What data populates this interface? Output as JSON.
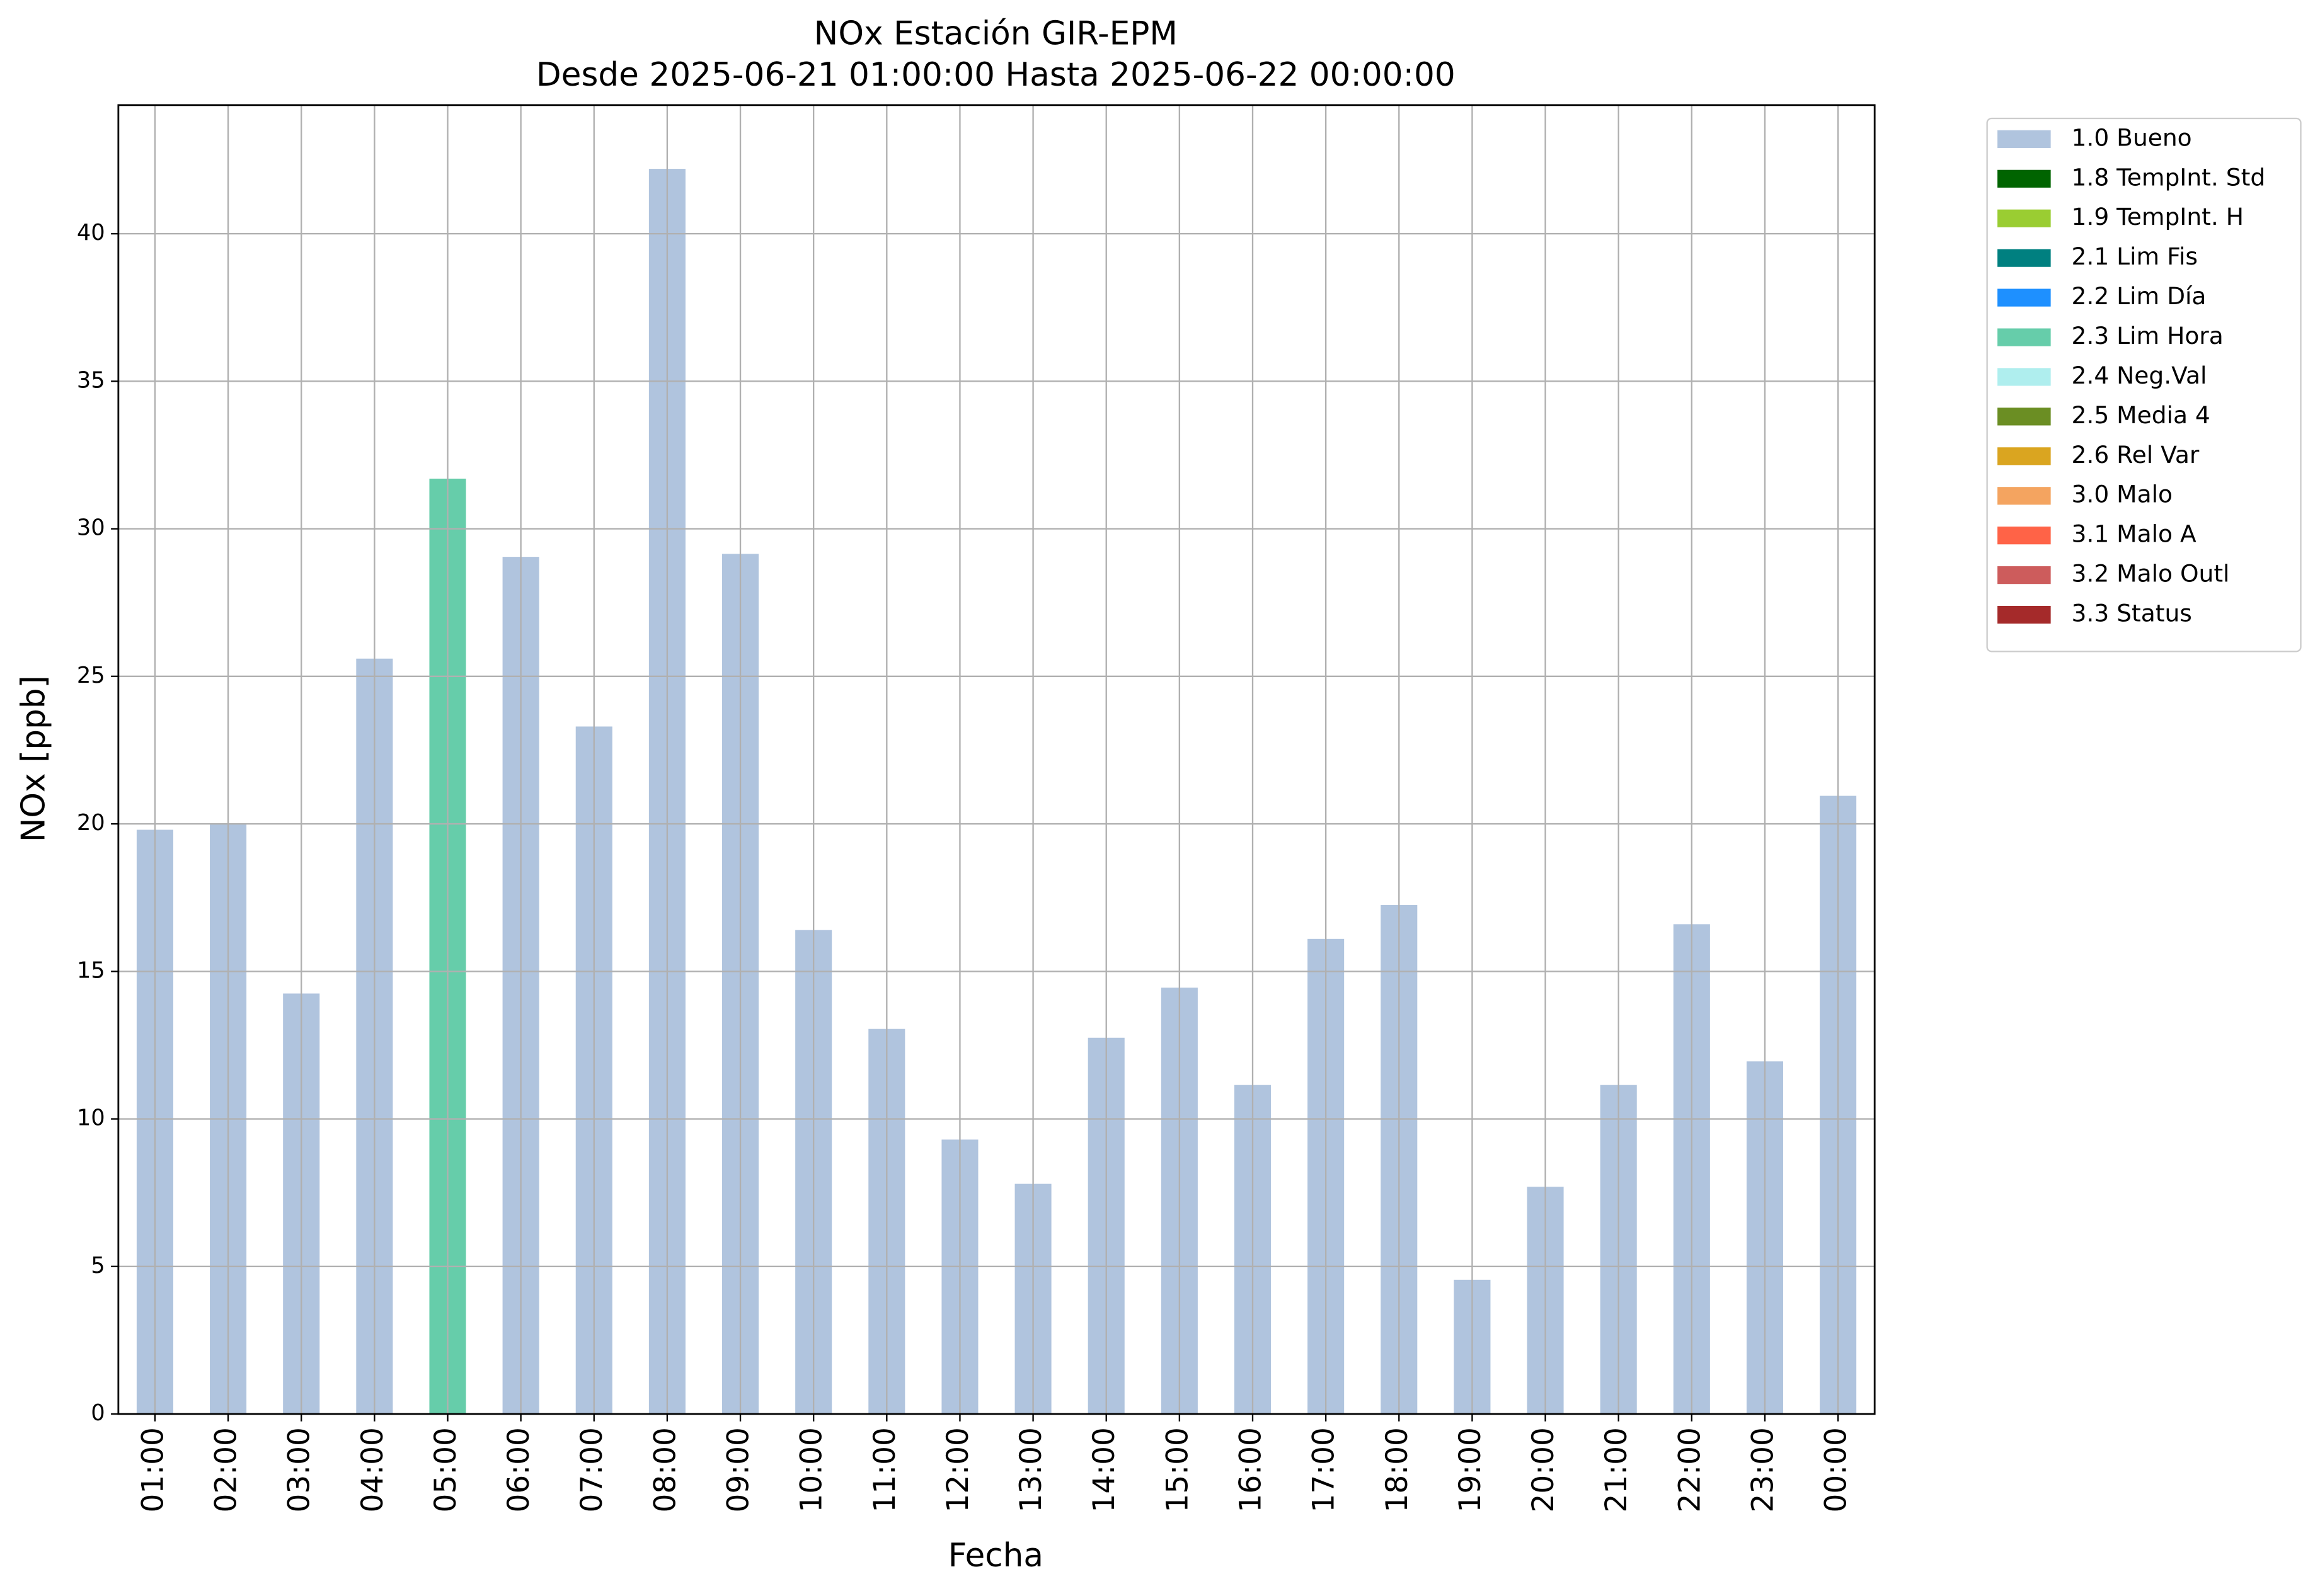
{
  "chart_data": {
    "type": "bar",
    "title": "NOx Estación GIR-EPM",
    "subtitle": "Desde 2025-06-21 01:00:00 Hasta 2025-06-22 00:00:00",
    "x_label": "Fecha",
    "y_label": "NOx [ppb]",
    "categories": [
      "01:00",
      "02:00",
      "03:00",
      "04:00",
      "05:00",
      "06:00",
      "07:00",
      "08:00",
      "09:00",
      "10:00",
      "11:00",
      "12:00",
      "13:00",
      "14:00",
      "15:00",
      "16:00",
      "17:00",
      "18:00",
      "19:00",
      "20:00",
      "21:00",
      "22:00",
      "23:00",
      "00:00"
    ],
    "ylim": [
      0,
      44.36
    ],
    "yticks": [
      0,
      5,
      10,
      15,
      20,
      25,
      30,
      35,
      40
    ],
    "grid": true,
    "stacked": true,
    "legend": "outside-upper-right",
    "series": [
      {
        "name": "1.0 Bueno",
        "color": "#b0c4de",
        "values": [
          19.8,
          20.0,
          14.25,
          25.6,
          null,
          29.05,
          23.3,
          42.2,
          29.15,
          16.4,
          13.05,
          9.3,
          7.8,
          12.75,
          14.45,
          11.15,
          16.1,
          17.25,
          4.55,
          7.7,
          11.15,
          16.6,
          11.95,
          20.95
        ]
      },
      {
        "name": "1.8 TempInt. Std",
        "color": "#006400",
        "values": [
          null,
          null,
          null,
          null,
          null,
          null,
          null,
          null,
          null,
          null,
          null,
          null,
          null,
          null,
          null,
          null,
          null,
          null,
          null,
          null,
          null,
          null,
          null,
          null
        ]
      },
      {
        "name": "1.9 TempInt. H",
        "color": "#9acd32",
        "values": [
          null,
          null,
          null,
          null,
          null,
          null,
          null,
          null,
          null,
          null,
          null,
          null,
          null,
          null,
          null,
          null,
          null,
          null,
          null,
          null,
          null,
          null,
          null,
          null
        ]
      },
      {
        "name": "2.1 Lim Fis",
        "color": "#008080",
        "values": [
          null,
          null,
          null,
          null,
          null,
          null,
          null,
          null,
          null,
          null,
          null,
          null,
          null,
          null,
          null,
          null,
          null,
          null,
          null,
          null,
          null,
          null,
          null,
          null
        ]
      },
      {
        "name": "2.2 Lim Día",
        "color": "#1e90ff",
        "values": [
          null,
          null,
          null,
          null,
          null,
          null,
          null,
          null,
          null,
          null,
          null,
          null,
          null,
          null,
          null,
          null,
          null,
          null,
          null,
          null,
          null,
          null,
          null,
          null
        ]
      },
      {
        "name": "2.3 Lim Hora",
        "color": "#66cdaa",
        "values": [
          null,
          null,
          null,
          null,
          31.7,
          null,
          null,
          null,
          null,
          null,
          null,
          null,
          null,
          null,
          null,
          null,
          null,
          null,
          null,
          null,
          null,
          null,
          null,
          null
        ]
      },
      {
        "name": "2.4 Neg.Val",
        "color": "#afeeee",
        "values": [
          null,
          null,
          null,
          null,
          null,
          null,
          null,
          null,
          null,
          null,
          null,
          null,
          null,
          null,
          null,
          null,
          null,
          null,
          null,
          null,
          null,
          null,
          null,
          null
        ]
      },
      {
        "name": "2.5 Media 4",
        "color": "#6b8e23",
        "values": [
          null,
          null,
          null,
          null,
          null,
          null,
          null,
          null,
          null,
          null,
          null,
          null,
          null,
          null,
          null,
          null,
          null,
          null,
          null,
          null,
          null,
          null,
          null,
          null
        ]
      },
      {
        "name": "2.6 Rel Var",
        "color": "#daa520",
        "values": [
          null,
          null,
          null,
          null,
          null,
          null,
          null,
          null,
          null,
          null,
          null,
          null,
          null,
          null,
          null,
          null,
          null,
          null,
          null,
          null,
          null,
          null,
          null,
          null
        ]
      },
      {
        "name": "3.0 Malo",
        "color": "#f4a460",
        "values": [
          null,
          null,
          null,
          null,
          null,
          null,
          null,
          null,
          null,
          null,
          null,
          null,
          null,
          null,
          null,
          null,
          null,
          null,
          null,
          null,
          null,
          null,
          null,
          null
        ]
      },
      {
        "name": "3.1 Malo A",
        "color": "#ff6347",
        "values": [
          null,
          null,
          null,
          null,
          null,
          null,
          null,
          null,
          null,
          null,
          null,
          null,
          null,
          null,
          null,
          null,
          null,
          null,
          null,
          null,
          null,
          null,
          null,
          null
        ]
      },
      {
        "name": "3.2 Malo Outl",
        "color": "#cd5c5c",
        "values": [
          null,
          null,
          null,
          null,
          null,
          null,
          null,
          null,
          null,
          null,
          null,
          null,
          null,
          null,
          null,
          null,
          null,
          null,
          null,
          null,
          null,
          null,
          null,
          null
        ]
      },
      {
        "name": "3.3 Status",
        "color": "#a52a2a",
        "values": [
          null,
          null,
          null,
          null,
          null,
          null,
          null,
          null,
          null,
          null,
          null,
          null,
          null,
          null,
          null,
          null,
          null,
          null,
          null,
          null,
          null,
          null,
          null,
          null
        ]
      }
    ]
  }
}
